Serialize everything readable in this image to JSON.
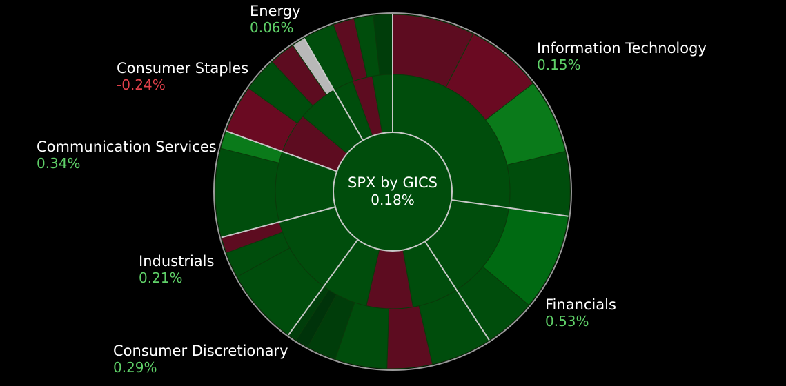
{
  "chart_data": {
    "type": "sunburst",
    "center": {
      "title": "SPX by GICS",
      "change": "0.18%"
    },
    "colors": {
      "background": "#000000",
      "positive_text": "#5fd068",
      "negative_text": "#e0404a",
      "border": "#c8c8c8"
    },
    "sectors": [
      {
        "name": "Information Technology",
        "change": "0.15%",
        "sign": 1,
        "subs": [
          {
            "weight": 3.2,
            "color": "#5d0c20"
          },
          {
            "weight": 3.0,
            "color": "#6a0a22"
          },
          {
            "weight": 2.9,
            "color": "#0a7a1a"
          },
          {
            "weight": 2.5,
            "color": "#004d0c"
          }
        ]
      },
      {
        "name": "Financials",
        "change": "0.53%",
        "sign": 1,
        "subs": [
          {
            "weight": 1.3,
            "color": "#006a12"
          },
          {
            "weight": 0.7,
            "color": "#004d0c"
          }
        ]
      },
      {
        "name": "Consumer Discretionary",
        "change": "0.29%",
        "sign": 1,
        "subs": [
          {
            "weight": 2.7,
            "color": "#004d0c"
          },
          {
            "weight": 2.0,
            "color": "#5d0c20"
          },
          {
            "weight": 2.3,
            "color": "#004d0c"
          },
          {
            "weight": 1.3,
            "color": "#003d0a"
          },
          {
            "weight": 0.6,
            "color": "#00330a"
          },
          {
            "weight": 0.4,
            "color": "#003d0a"
          }
        ]
      },
      {
        "name": "Industrials",
        "change": "0.21%",
        "sign": 1,
        "subs": [
          {
            "weight": 2.4,
            "color": "#004d0c"
          },
          {
            "weight": 0.8,
            "color": "#004d0c"
          },
          {
            "weight": 0.5,
            "color": "#5d0c20"
          }
        ]
      },
      {
        "name": "Communication Services",
        "change": "0.34%",
        "sign": 1,
        "subs": [
          {
            "weight": 2.5,
            "color": "#004d0c"
          },
          {
            "weight": 0.5,
            "color": "#0a7a1a"
          }
        ]
      },
      {
        "name": "Consumer Staples",
        "change": "-0.24%",
        "sign": -1,
        "subs": [
          {
            "weight": 1.1,
            "color": "#6a0a22"
          },
          {
            "weight": 0.8,
            "color": "#004d0c"
          },
          {
            "weight": 0.6,
            "color": "#5d0c20"
          },
          {
            "weight": 0.3,
            "color": "#b8b8b8"
          }
        ]
      },
      {
        "name": "Energy",
        "change": "0.06%",
        "sign": 1,
        "subs": [
          {
            "weight": 1.5,
            "color": "#004d0c"
          },
          {
            "weight": 1.0,
            "color": "#5d0c20"
          },
          {
            "weight": 0.9,
            "color": "#004d0c"
          },
          {
            "weight": 0.9,
            "color": "#003d0a"
          }
        ]
      }
    ]
  }
}
